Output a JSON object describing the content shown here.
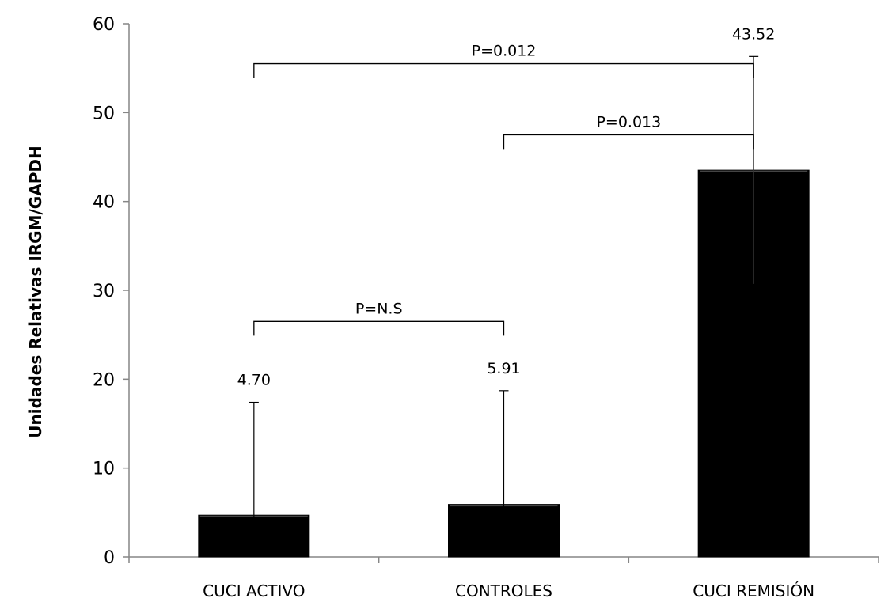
{
  "chart_data": {
    "type": "bar",
    "categories": [
      "CUCI ACTIVO",
      "CONTROLES",
      "CUCI REMISIÓN"
    ],
    "values": [
      4.7,
      5.91,
      43.52
    ],
    "value_labels": [
      "4.70",
      "5.91",
      "43.52"
    ],
    "error_plus": [
      12.7,
      12.8,
      12.8
    ],
    "ylabel": "Unidades Relativas  IRGM/GAPDH",
    "ylim": [
      0,
      60
    ],
    "yticks": [
      0,
      10,
      20,
      30,
      40,
      50,
      60
    ],
    "grid": false,
    "legend": "none",
    "bar_color": "#000000",
    "comparisons": [
      {
        "from": 0,
        "to": 2,
        "y": 55.5,
        "label": "P=0.012",
        "label_y": 58.0
      },
      {
        "from": 1,
        "to": 2,
        "y": 47.5,
        "label": "P=0.013",
        "label_y": 49.5
      },
      {
        "from": 0,
        "to": 1,
        "y": 26.5,
        "label": "P=N.S",
        "label_y": 27.8
      }
    ]
  }
}
